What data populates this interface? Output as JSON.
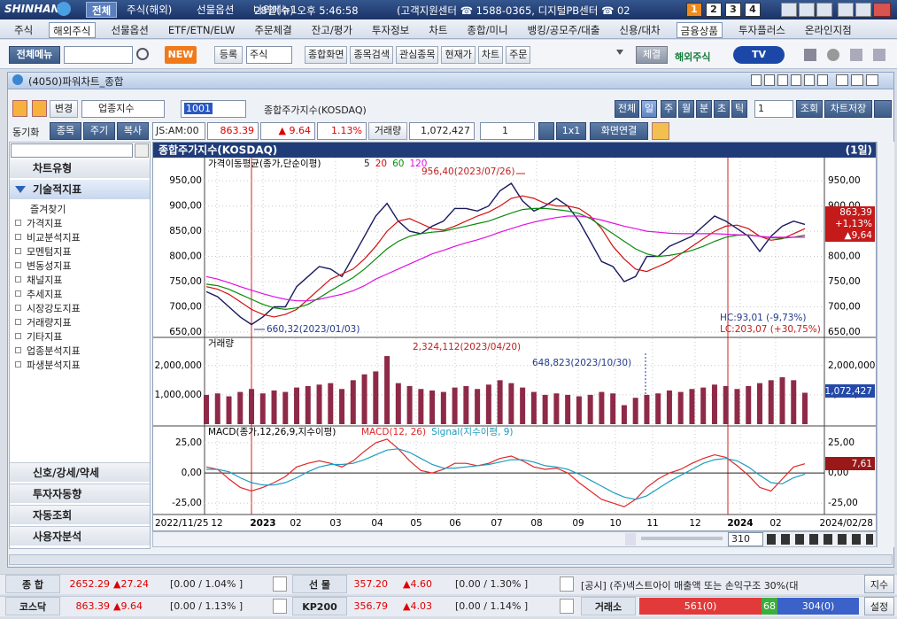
{
  "top_bar": {
    "brand": "SHINHAN",
    "tabs": [
      "전체",
      "주식(해외)",
      "선물옵션",
      "나의메뉴1"
    ],
    "clock": "28일(수) 오후 5:46:58",
    "info": "(고객지원센터 ☎ 1588-0365, 디지털PB센터 ☎ 02",
    "pages": [
      "1",
      "2",
      "3",
      "4"
    ]
  },
  "menu": [
    "주식",
    "해외주식",
    "선물옵션",
    "ETF/ETN/ELW",
    "주문체결",
    "잔고/평가",
    "투자정보",
    "차트",
    "종합/미니",
    "뱅킹/공모주/대출",
    "신용/대차",
    "금융상품",
    "투자플러스",
    "온라인지점"
  ],
  "toolbar": {
    "all_menu": "전체메뉴",
    "new": "NEW",
    "register": "등록",
    "select": "주식",
    "screens": [
      "종합화면",
      "종목검색",
      "관심종목",
      "현재가",
      "차트",
      "주문"
    ],
    "fill": "체결",
    "overseas": "해외주식",
    "tv": "TV"
  },
  "window": {
    "title": "(4050)파워차트_종합"
  },
  "controls": {
    "change": "변경",
    "market": "업종지수",
    "code": "1001",
    "name": "종합주가지수(KOSDAQ)",
    "periods": [
      "전체",
      "일",
      "주",
      "월",
      "분",
      "초",
      "틱"
    ],
    "count": "1",
    "query": "조회",
    "save": "차트저장",
    "sync": "동기화",
    "tabs": [
      "종목",
      "주기",
      "복사"
    ],
    "time": "JS:AM:00",
    "price": "863.39",
    "change_value": "▲ 9.64",
    "change_rate": "1.13%",
    "volume_label": "거래량",
    "volume": "1,072,427",
    "layout_count": "1",
    "layout": "1x1",
    "link": "화면연결"
  },
  "sidebar": {
    "sections": [
      "차트유형",
      "기술적지표"
    ],
    "favorites": "즐겨찾기",
    "tree": [
      "가격지표",
      "비교분석지표",
      "모멘텀지표",
      "변동성지표",
      "채널지표",
      "추세지표",
      "시장강도지표",
      "거래량지표",
      "기타지표",
      "업종분석지표",
      "파생분석지표"
    ],
    "bottom": [
      "신호/강세/약세",
      "투자자동향",
      "자동조회",
      "사용자분석"
    ]
  },
  "chart": {
    "title": "종합주가지수(KOSDAQ)",
    "period": "(1일)",
    "x_labels": [
      "2022/11/25",
      "12",
      "2023",
      "02",
      "03",
      "04",
      "05",
      "06",
      "07",
      "08",
      "09",
      "10",
      "11",
      "12",
      "2024",
      "02",
      "2024/02/28"
    ],
    "scroll_count": "310"
  },
  "chart_data": [
    {
      "type": "line",
      "legend": "가격이동평균(종가,단순이평)",
      "ylim": [
        643,
        973
      ],
      "yticks": [
        {
          "value": 950,
          "label": "950,00"
        },
        {
          "value": 900,
          "label": "900,00"
        },
        {
          "value": 850,
          "label": "850,00"
        },
        {
          "value": 800,
          "label": "800,00"
        },
        {
          "value": 750,
          "label": "750,00"
        },
        {
          "value": 700,
          "label": "700,00"
        },
        {
          "value": 650,
          "label": "650,00"
        }
      ],
      "series": [
        {
          "name": "5",
          "color": "#1a1a60",
          "values": [
            730,
            720,
            700,
            680,
            665,
            680,
            700,
            700,
            740,
            760,
            780,
            775,
            760,
            800,
            840,
            880,
            905,
            870,
            850,
            845,
            860,
            870,
            895,
            895,
            890,
            900,
            930,
            945,
            910,
            890,
            900,
            915,
            900,
            870,
            830,
            790,
            780,
            750,
            760,
            800,
            800,
            820,
            830,
            840,
            860,
            880,
            870,
            855,
            840,
            810,
            840,
            860,
            870,
            863.39
          ]
        },
        {
          "name": "20",
          "color": "#d01010",
          "values": [
            740,
            735,
            725,
            710,
            695,
            685,
            680,
            685,
            695,
            715,
            735,
            755,
            765,
            775,
            795,
            820,
            850,
            870,
            875,
            865,
            855,
            852,
            860,
            870,
            880,
            888,
            900,
            915,
            920,
            915,
            905,
            900,
            900,
            895,
            880,
            855,
            820,
            795,
            775,
            770,
            780,
            790,
            805,
            820,
            835,
            850,
            860,
            862,
            855,
            840,
            832,
            835,
            845,
            855
          ]
        },
        {
          "name": "60",
          "color": "#0a8a0a",
          "values": [
            745,
            742,
            735,
            725,
            715,
            705,
            698,
            695,
            698,
            705,
            718,
            732,
            745,
            758,
            775,
            795,
            815,
            830,
            840,
            845,
            848,
            850,
            855,
            860,
            865,
            870,
            878,
            886,
            893,
            895,
            895,
            893,
            890,
            885,
            875,
            860,
            845,
            830,
            815,
            805,
            800,
            802,
            806,
            812,
            820,
            830,
            838,
            842,
            843,
            840,
            837,
            836,
            838,
            842
          ]
        },
        {
          "name": "120",
          "color": "#e010e0",
          "values": [
            760,
            755,
            748,
            740,
            733,
            726,
            720,
            715,
            712,
            712,
            715,
            720,
            725,
            732,
            742,
            755,
            765,
            775,
            785,
            795,
            805,
            812,
            820,
            827,
            833,
            840,
            848,
            855,
            862,
            868,
            873,
            877,
            880,
            880,
            877,
            872,
            866,
            860,
            855,
            850,
            848,
            846,
            845,
            845,
            845,
            845,
            844,
            843,
            842,
            840,
            838,
            838,
            838,
            838
          ]
        }
      ],
      "high_label": "956,40(2023/07/26)",
      "low_label": "660,32(2023/01/03)",
      "hc_label": "HC:93,01 (-9,73%)",
      "lc_label": "LC:203,07 (+30,75%)",
      "last_labels": [
        "863,39",
        "+1,13%",
        "▲9,64"
      ]
    },
    {
      "type": "bar",
      "legend": "거래량",
      "color": "#8e2a48",
      "ylim": [
        0,
        2900000
      ],
      "yticks": [
        {
          "value": 2000000,
          "label": "2,000,000"
        },
        {
          "value": 1000000,
          "label": "1,000,000"
        }
      ],
      "values": [
        1000000,
        1050000,
        950000,
        1100000,
        1200000,
        1050000,
        1150000,
        1100000,
        1250000,
        1300000,
        1350000,
        1400000,
        1200000,
        1500000,
        1700000,
        1800000,
        2324112,
        1400000,
        1300000,
        1200000,
        1150000,
        1100000,
        1250000,
        1300000,
        1200000,
        1350000,
        1500000,
        1400000,
        1250000,
        1100000,
        1000000,
        1050000,
        1000000,
        950000,
        1000000,
        1100000,
        1050000,
        648823,
        900000,
        1000000,
        1050000,
        1150000,
        1100000,
        1200000,
        1250000,
        1350000,
        1300000,
        1200000,
        1300000,
        1400000,
        1500000,
        1600000,
        1500000,
        1072427
      ],
      "peak_label": "2,324,112(2023/04/20)",
      "low_label": "648,823(2023/10/30)",
      "last_label": "1,072,427"
    },
    {
      "type": "line",
      "legend": "MACD(종가,12,26,9,지수이평)",
      "ylim": [
        -33,
        37.5
      ],
      "yticks": [
        {
          "value": 25,
          "label": "25,00"
        },
        {
          "value": 0,
          "label": "0,00"
        },
        {
          "value": -25,
          "label": "-25,00"
        }
      ],
      "series": [
        {
          "name": "MACD(12, 26)",
          "color": "#e02828",
          "values": [
            5,
            3,
            -5,
            -12,
            -15,
            -12,
            -8,
            -3,
            5,
            8,
            10,
            8,
            5,
            10,
            18,
            25,
            28,
            20,
            10,
            2,
            0,
            3,
            8,
            8,
            6,
            8,
            12,
            14,
            10,
            5,
            3,
            4,
            0,
            -8,
            -15,
            -22,
            -25,
            -28,
            -22,
            -12,
            -5,
            0,
            3,
            8,
            12,
            15,
            13,
            6,
            -2,
            -12,
            -15,
            -5,
            5,
            7.61
          ]
        },
        {
          "name": "Signal(지수이평, 9)",
          "color": "#1c9cc0",
          "values": [
            3,
            3,
            1,
            -4,
            -8,
            -10,
            -10,
            -8,
            -4,
            1,
            5,
            7,
            7,
            8,
            11,
            15,
            19,
            20,
            17,
            12,
            7,
            4,
            4,
            5,
            6,
            7,
            9,
            11,
            11,
            9,
            6,
            5,
            3,
            -1,
            -6,
            -11,
            -16,
            -20,
            -22,
            -19,
            -13,
            -7,
            -2,
            3,
            8,
            11,
            12,
            10,
            5,
            -2,
            -8,
            -9,
            -4,
            -1
          ]
        }
      ],
      "last_label": "7,61"
    }
  ],
  "status": {
    "rows": [
      {
        "name": "종 합",
        "value": "2652.29",
        "change": "▲27.24",
        "detail": "[0.00  / 1.04%  ]",
        "name2": "선 물",
        "value2": "357.20",
        "change2": "▲4.60",
        "detail2": "[0.00  / 1.30%  ]",
        "notice": "[공시] (주)넥스트아이 매출액 또는 손익구조 30%(대",
        "button": "지수"
      },
      {
        "name": "코스닥",
        "value": "863.39",
        "change": "▲9.64",
        "detail": "[0.00  / 1.13%  ]",
        "name2": "KP200",
        "value2": "356.79",
        "change2": "▲4.03",
        "detail2": "[0.00  / 1.14%  ]",
        "market": "거래소",
        "up": "561(0)",
        "flat": "68",
        "down": "304(0)",
        "button": "설정"
      }
    ]
  }
}
